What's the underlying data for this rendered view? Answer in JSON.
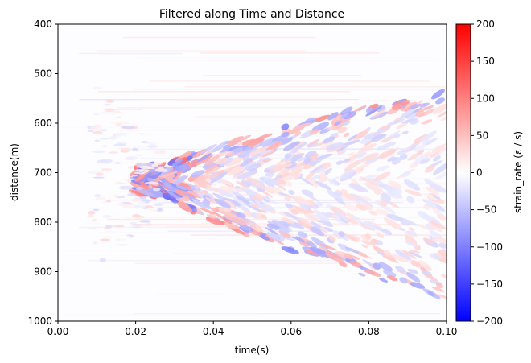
{
  "chart_data": {
    "type": "heatmap",
    "title": "Filtered along Time and Distance",
    "xlabel": "time(s)",
    "ylabel": "distance(m)",
    "xlim": [
      0.0,
      0.1
    ],
    "ylim": [
      1000,
      400
    ],
    "x_ticks": [
      "0.00",
      "0.02",
      "0.04",
      "0.06",
      "0.08",
      "0.10"
    ],
    "x_tick_values": [
      0.0,
      0.02,
      0.04,
      0.06,
      0.08,
      0.1
    ],
    "y_ticks": [
      "400",
      "500",
      "600",
      "700",
      "800",
      "900",
      "1000"
    ],
    "y_tick_values": [
      400,
      500,
      600,
      700,
      800,
      900,
      1000
    ],
    "colorbar": {
      "label": "strain_rate (ε / s)",
      "colormap": "bwr",
      "vmin": -200,
      "vmax": 200,
      "ticks": [
        "200",
        "150",
        "100",
        "50",
        "0",
        "−50",
        "−100",
        "−150",
        "−200"
      ],
      "tick_values": [
        200,
        150,
        100,
        50,
        0,
        -50,
        -100,
        -150,
        -200
      ],
      "colors": {
        "low": "#0000ff",
        "mid": "#ffffff",
        "high": "#ff0000"
      }
    },
    "wavefront": {
      "apex_time": 0.027,
      "apex_distance": 715,
      "upper_branch_end": [
        0.1,
        560
      ],
      "lower_branch_end": [
        0.1,
        930
      ]
    }
  }
}
